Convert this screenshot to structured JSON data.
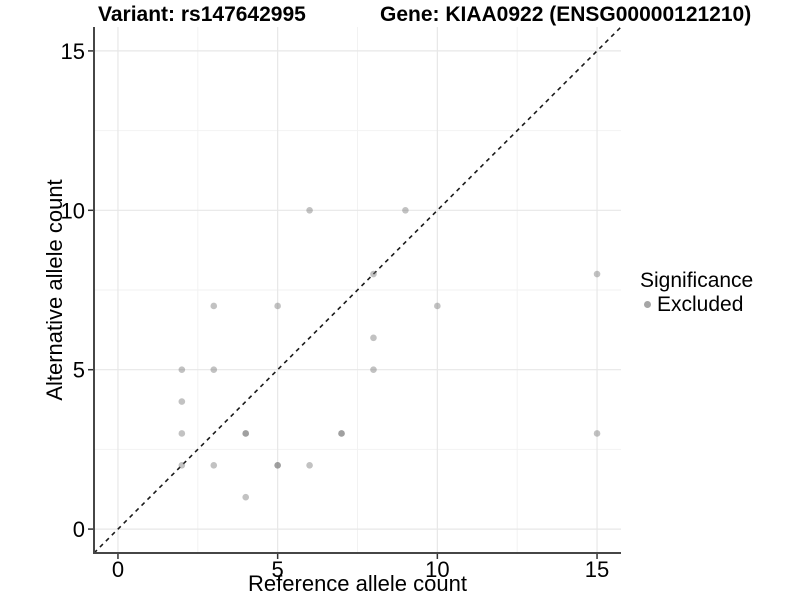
{
  "titles": {
    "variant": "Variant: rs147642995",
    "gene": "Gene: KIAA0922 (ENSG00000121210)"
  },
  "chart_data": {
    "type": "scatter",
    "title_left": "Variant: rs147642995",
    "title_right": "Gene: KIAA0922 (ENSG00000121210)",
    "xlabel": "Reference allele count",
    "ylabel": "Alternative allele count",
    "xlim": [
      -0.75,
      15.75
    ],
    "ylim": [
      -0.75,
      15.75
    ],
    "x_ticks": [
      0,
      5,
      10,
      15
    ],
    "y_ticks": [
      0,
      5,
      10,
      15
    ],
    "x_minor_ticks": [
      2.5,
      7.5,
      12.5
    ],
    "y_minor_ticks": [
      2.5,
      7.5,
      12.5
    ],
    "grid": true,
    "identity_line": {
      "slope": 1,
      "intercept": 0,
      "style": "dashed",
      "color": "#1a1a1a"
    },
    "series": [
      {
        "name": "Excluded",
        "color": "#787878",
        "alpha": 0.45,
        "points": [
          [
            2,
            2
          ],
          [
            2,
            3
          ],
          [
            2,
            4
          ],
          [
            2,
            5
          ],
          [
            3,
            2
          ],
          [
            3,
            5
          ],
          [
            3,
            7
          ],
          [
            4,
            1
          ],
          [
            4,
            3
          ],
          [
            4,
            3
          ],
          [
            5,
            2
          ],
          [
            5,
            2
          ],
          [
            5,
            7
          ],
          [
            6,
            2
          ],
          [
            6,
            10
          ],
          [
            7,
            3
          ],
          [
            7,
            3
          ],
          [
            8,
            5
          ],
          [
            8,
            6
          ],
          [
            8,
            8
          ],
          [
            9,
            10
          ],
          [
            10,
            7
          ],
          [
            15,
            3
          ],
          [
            15,
            8
          ]
        ]
      }
    ],
    "legend": {
      "position": "right",
      "title": "Significance",
      "entries": [
        {
          "label": "Excluded",
          "color": "#a6a6a6"
        }
      ]
    },
    "colors": {
      "grid_major": "#e7e7e7",
      "grid_minor": "#f2f2f2",
      "axis_line": "#464646",
      "tick_mark": "#333333",
      "point": "#787878"
    }
  }
}
